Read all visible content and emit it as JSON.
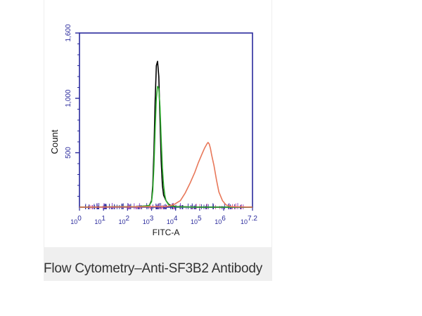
{
  "caption": "Flow Cytometry–Anti-SF3B2 Antibody",
  "colors": {
    "axis": "#2a2a9c",
    "series_black": "#000000",
    "series_green": "#2eaa2e",
    "series_orange": "#e8785a",
    "caption_bg": "#efefef"
  },
  "chart_data": {
    "type": "line",
    "title": "",
    "xlabel": "FITC-A",
    "ylabel": "Count",
    "xscale": "log",
    "xlim": [
      0,
      7.2
    ],
    "ylim": [
      0,
      1600
    ],
    "x_ticks": [
      {
        "base": "10",
        "exp": "0",
        "value": 0
      },
      {
        "base": "10",
        "exp": "1",
        "value": 1
      },
      {
        "base": "10",
        "exp": "2",
        "value": 2
      },
      {
        "base": "10",
        "exp": "3",
        "value": 3
      },
      {
        "base": "10",
        "exp": "4",
        "value": 4
      },
      {
        "base": "10",
        "exp": "5",
        "value": 5
      },
      {
        "base": "10",
        "exp": "6",
        "value": 6
      },
      {
        "base": "10",
        "exp": "7.2",
        "value": 7.2
      }
    ],
    "y_ticks": [
      {
        "label": "500",
        "value": 500
      },
      {
        "label": "1,000",
        "value": 1000
      },
      {
        "label": "1,600",
        "value": 1600
      }
    ],
    "grid": false,
    "legend": "none",
    "series": [
      {
        "color_key": "series_black",
        "x": [
          0,
          2.5,
          2.9,
          3.0,
          3.05,
          3.1,
          3.15,
          3.2,
          3.25,
          3.3,
          3.35,
          3.4,
          3.45,
          3.5,
          3.6,
          3.7,
          3.8,
          4.0,
          5.0,
          7.2
        ],
        "y": [
          0,
          5,
          15,
          60,
          200,
          520,
          980,
          1300,
          1340,
          1200,
          800,
          420,
          200,
          110,
          60,
          30,
          15,
          5,
          0,
          0
        ]
      },
      {
        "color_key": "series_green",
        "x": [
          0,
          2.5,
          2.9,
          3.0,
          3.05,
          3.1,
          3.15,
          3.2,
          3.25,
          3.3,
          3.35,
          3.4,
          3.45,
          3.5,
          3.55,
          3.6,
          3.7,
          3.8,
          4.0,
          5.0,
          7.2
        ],
        "y": [
          0,
          5,
          15,
          50,
          150,
          380,
          720,
          1000,
          1110,
          1090,
          920,
          620,
          360,
          200,
          110,
          60,
          25,
          10,
          3,
          0,
          0
        ]
      },
      {
        "color_key": "series_orange",
        "x": [
          0,
          3.6,
          3.9,
          4.2,
          4.4,
          4.6,
          4.8,
          4.95,
          5.1,
          5.2,
          5.3,
          5.35,
          5.4,
          5.45,
          5.5,
          5.6,
          5.7,
          5.8,
          5.95,
          6.1,
          6.3,
          7.2
        ],
        "y": [
          0,
          5,
          20,
          60,
          130,
          220,
          320,
          410,
          490,
          540,
          580,
          595,
          580,
          540,
          480,
          380,
          250,
          140,
          60,
          20,
          5,
          0
        ]
      }
    ]
  }
}
